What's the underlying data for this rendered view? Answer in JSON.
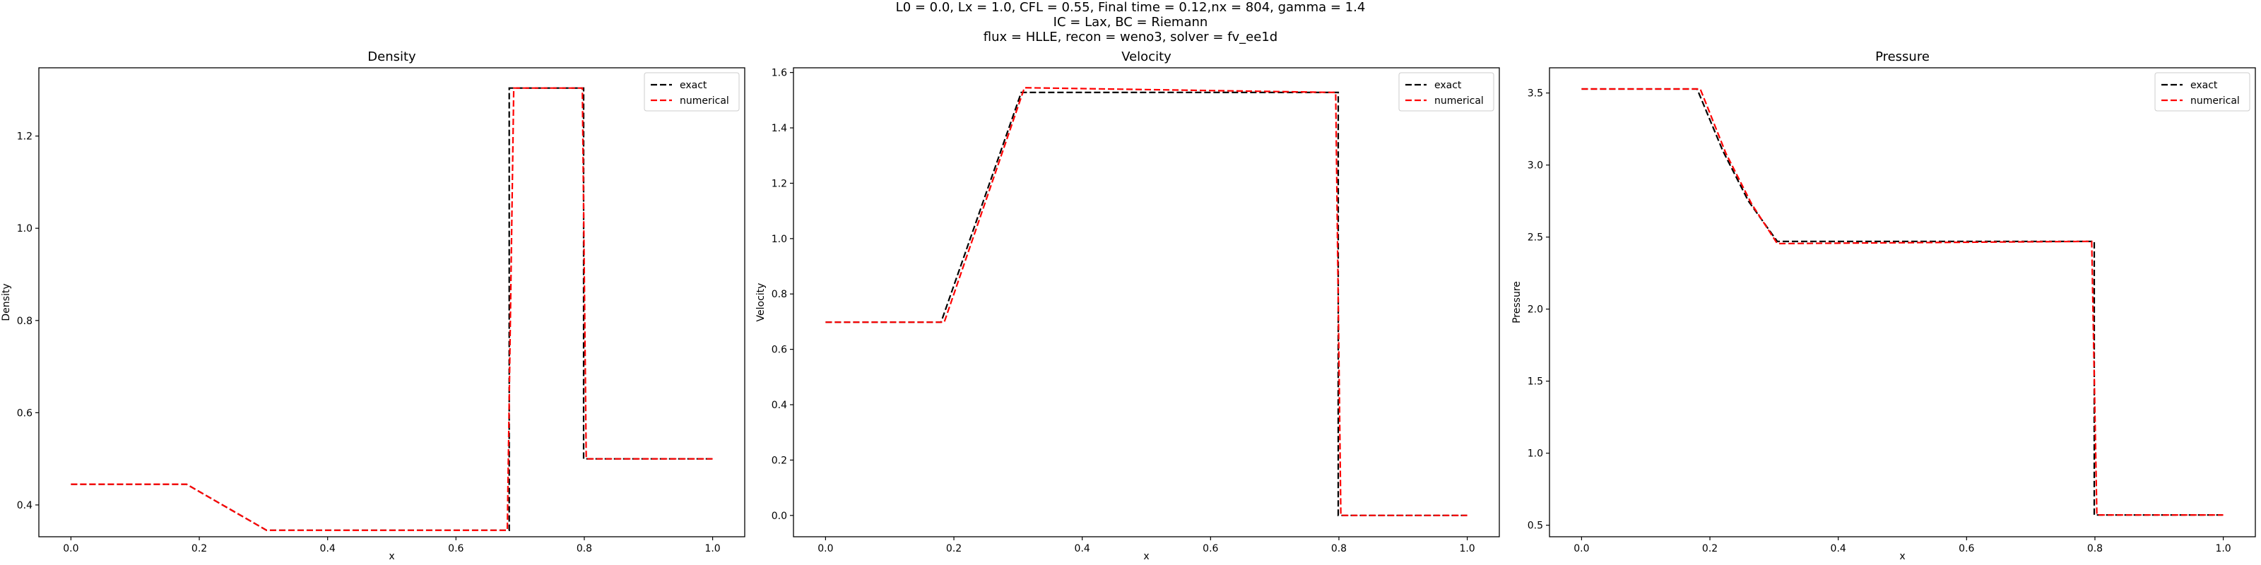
{
  "suptitle": {
    "line1": "L0 = 0.0, Lx = 1.0, CFL = 0.55, Final time = 0.12,nx = 804, gamma = 1.4",
    "line2": "IC = Lax, BC = Riemann",
    "line3": "flux = HLLE, recon = weno3, solver = fv_ee1d"
  },
  "colors": {
    "exact": "#000000",
    "numerical": "#ff0000",
    "axes": "#000000"
  },
  "chart_data": [
    {
      "type": "line",
      "title": "Density",
      "xlabel": "x",
      "ylabel": "Density",
      "xlim": [
        -0.05,
        1.05
      ],
      "ylim": [
        0.331,
        1.348
      ],
      "xticks": [
        0.0,
        0.2,
        0.4,
        0.6,
        0.8,
        1.0
      ],
      "xtick_labels": [
        "0.0",
        "0.2",
        "0.4",
        "0.6",
        "0.8",
        "1.0"
      ],
      "yticks": [
        0.4,
        0.6,
        0.8,
        1.0,
        1.2
      ],
      "ytick_labels": [
        "0.4",
        "0.6",
        "0.8",
        "1.0",
        "1.2"
      ],
      "grid": false,
      "legend": "upper right",
      "series": [
        {
          "name": "exact",
          "style": "dashed",
          "color": "#000000",
          "x": [
            0.0,
            0.18,
            0.305,
            0.683,
            0.683,
            0.799,
            0.799,
            1.0
          ],
          "y": [
            0.445,
            0.445,
            0.345,
            0.345,
            1.304,
            1.304,
            0.5,
            0.5
          ]
        },
        {
          "name": "numerical",
          "style": "dashed",
          "color": "#ff0000",
          "x": [
            0.0,
            0.18,
            0.305,
            0.68,
            0.69,
            0.797,
            0.803,
            1.0
          ],
          "y": [
            0.445,
            0.445,
            0.345,
            0.345,
            1.304,
            1.304,
            0.5,
            0.5
          ]
        }
      ]
    },
    {
      "type": "line",
      "title": "Velocity",
      "xlabel": "x",
      "ylabel": "Velocity",
      "xlim": [
        -0.05,
        1.05
      ],
      "ylim": [
        -0.077,
        1.617
      ],
      "xticks": [
        0.0,
        0.2,
        0.4,
        0.6,
        0.8,
        1.0
      ],
      "xtick_labels": [
        "0.0",
        "0.2",
        "0.4",
        "0.6",
        "0.8",
        "1.0"
      ],
      "yticks": [
        0.0,
        0.2,
        0.4,
        0.6,
        0.8,
        1.0,
        1.2,
        1.4,
        1.6
      ],
      "ytick_labels": [
        "0.0",
        "0.2",
        "0.4",
        "0.6",
        "0.8",
        "1.0",
        "1.2",
        "1.4",
        "1.6"
      ],
      "grid": false,
      "legend": "upper right",
      "series": [
        {
          "name": "exact",
          "style": "dashed",
          "color": "#000000",
          "x": [
            0.0,
            0.18,
            0.305,
            0.799,
            0.799,
            1.0
          ],
          "y": [
            0.698,
            0.698,
            1.528,
            1.528,
            0.0,
            0.0
          ]
        },
        {
          "name": "numerical",
          "style": "dashed",
          "color": "#ff0000",
          "x": [
            0.0,
            0.185,
            0.31,
            0.795,
            0.803,
            1.0
          ],
          "y": [
            0.698,
            0.698,
            1.545,
            1.528,
            0.0,
            0.0
          ]
        }
      ]
    },
    {
      "type": "line",
      "title": "Pressure",
      "xlabel": "x",
      "ylabel": "Pressure",
      "xlim": [
        -0.05,
        1.05
      ],
      "ylim": [
        0.42,
        3.675
      ],
      "xticks": [
        0.0,
        0.2,
        0.4,
        0.6,
        0.8,
        1.0
      ],
      "xtick_labels": [
        "0.0",
        "0.2",
        "0.4",
        "0.6",
        "0.8",
        "1.0"
      ],
      "yticks": [
        0.5,
        1.0,
        1.5,
        2.0,
        2.5,
        3.0,
        3.5
      ],
      "ytick_labels": [
        "0.5",
        "1.0",
        "1.5",
        "2.0",
        "2.5",
        "3.0",
        "3.5"
      ],
      "grid": false,
      "legend": "upper right",
      "series": [
        {
          "name": "exact",
          "style": "dashed",
          "color": "#000000",
          "x": [
            0.0,
            0.18,
            0.22,
            0.26,
            0.305,
            0.799,
            0.799,
            1.0
          ],
          "y": [
            3.528,
            3.528,
            3.1,
            2.75,
            2.47,
            2.47,
            0.571,
            0.571
          ]
        },
        {
          "name": "numerical",
          "style": "dashed",
          "color": "#ff0000",
          "x": [
            0.0,
            0.185,
            0.225,
            0.265,
            0.305,
            0.795,
            0.803,
            1.0
          ],
          "y": [
            3.528,
            3.528,
            3.08,
            2.73,
            2.455,
            2.47,
            0.571,
            0.571
          ]
        }
      ]
    }
  ]
}
